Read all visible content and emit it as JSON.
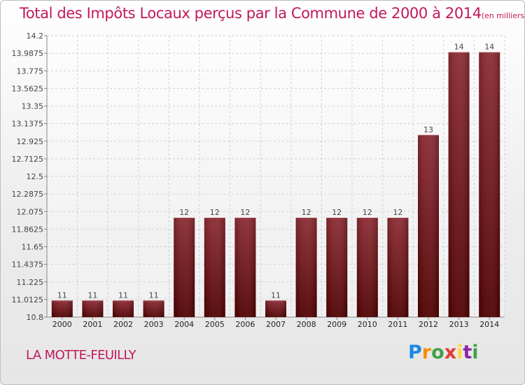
{
  "chart_data": {
    "type": "bar",
    "title": "Total des Impôts Locaux perçus par la Commune de 2000 à 2014",
    "unit_note": "(en milliers d'€)",
    "xlabel": "",
    "ylabel": "",
    "categories": [
      "2000",
      "2001",
      "2002",
      "2003",
      "2004",
      "2005",
      "2006",
      "2007",
      "2008",
      "2009",
      "2010",
      "2011",
      "2012",
      "2013",
      "2014"
    ],
    "values": [
      11,
      11,
      11,
      11,
      12,
      12,
      12,
      11,
      12,
      12,
      12,
      12,
      13,
      14,
      14
    ],
    "data_labels": [
      "11",
      "11",
      "11",
      "11",
      "12",
      "12",
      "12",
      "11",
      "12",
      "12",
      "12",
      "12",
      "13",
      "14",
      "14"
    ],
    "ylim": [
      10.8,
      14.2
    ],
    "yticks": [
      10.8,
      11.0125,
      11.225,
      11.4375,
      11.65,
      11.8625,
      12.075,
      12.2875,
      12.5,
      12.7125,
      12.925,
      13.1375,
      13.35,
      13.5625,
      13.775,
      13.9875,
      14.2
    ],
    "ytick_labels": [
      "10.8",
      "11.0125",
      "11.225",
      "11.4375",
      "11.65",
      "11.8625",
      "12.075",
      "12.2875",
      "12.5",
      "12.7125",
      "12.925",
      "13.1375",
      "13.35",
      "13.5625",
      "13.775",
      "13.9875",
      "14.2"
    ],
    "grid": true,
    "bar_color": "#7a1a22"
  },
  "commune": "LA MOTTE-FEUILLY",
  "logo": {
    "letters": [
      "P",
      "r",
      "o",
      "x",
      "i",
      "t",
      "i"
    ]
  }
}
